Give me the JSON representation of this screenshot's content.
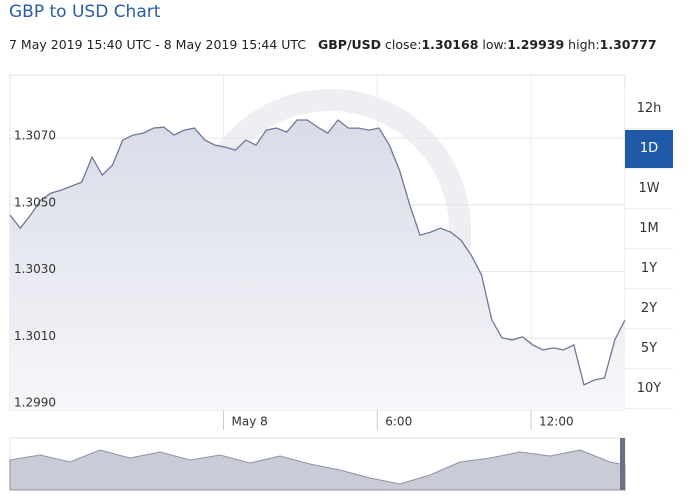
{
  "header": {
    "title": "GBP to USD Chart",
    "date_range": "7 May 2019 15:40 UTC - 8 May 2019 15:44 UTC",
    "pair": "GBP/USD",
    "close_label": "close:",
    "close": 1.30168,
    "low_label": "low:",
    "low": 1.29939,
    "high_label": "high:",
    "high": 1.30777
  },
  "range_buttons": [
    "12h",
    "1D",
    "1W",
    "1M",
    "1Y",
    "2Y",
    "5Y",
    "10Y"
  ],
  "selected_range": 1,
  "chart_data": {
    "type": "line",
    "color": "#6f7896",
    "fill": "#dcdfe9",
    "grid": true,
    "xlim": [
      0,
      60
    ],
    "xticks": [
      {
        "value": 20.83,
        "label": "May 8"
      },
      {
        "value": 35.83,
        "label": "6:00"
      },
      {
        "value": 50.83,
        "label": "12:00"
      }
    ],
    "ylim": [
      1.29885,
      1.30889
    ],
    "yticks": [
      {
        "value": 1.307,
        "label": "1.3070"
      },
      {
        "value": 1.305,
        "label": "1.3050"
      },
      {
        "value": 1.303,
        "label": "1.3030"
      },
      {
        "value": 1.301,
        "label": "1.3010"
      },
      {
        "value": 1.299,
        "label": "1.2990"
      }
    ],
    "values": [
      1.30469,
      1.3043,
      1.30469,
      1.30514,
      1.30535,
      1.30544,
      1.30556,
      1.30568,
      1.30643,
      1.30589,
      1.30619,
      1.30694,
      1.30709,
      1.30715,
      1.3073,
      1.30733,
      1.30709,
      1.30724,
      1.3073,
      1.30694,
      1.30679,
      1.30673,
      1.30664,
      1.30694,
      1.30679,
      1.30724,
      1.3073,
      1.30718,
      1.30754,
      1.30754,
      1.30733,
      1.30715,
      1.30754,
      1.3073,
      1.3073,
      1.30724,
      1.3073,
      1.30679,
      1.30604,
      1.30499,
      1.30409,
      1.30418,
      1.3043,
      1.30418,
      1.30394,
      1.30349,
      1.3029,
      1.30155,
      1.30101,
      1.30095,
      1.30104,
      1.3008,
      1.30065,
      1.30071,
      1.30065,
      1.3008,
      1.2996,
      1.29975,
      1.29981,
      1.30095,
      1.30155
    ]
  }
}
